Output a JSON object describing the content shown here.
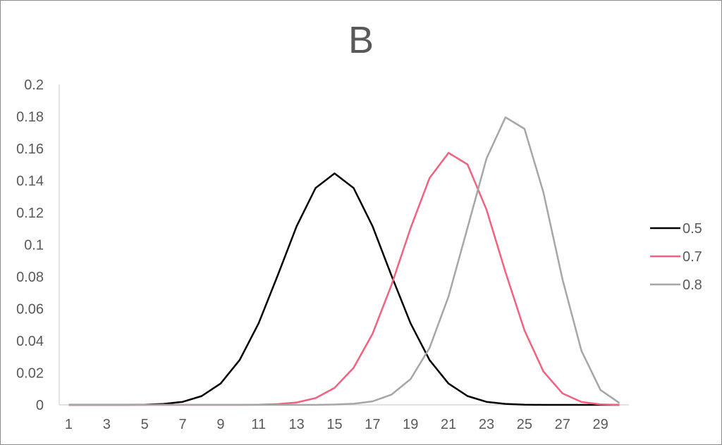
{
  "chart_data": {
    "type": "line",
    "title": "B",
    "xlabel": "",
    "ylabel": "",
    "x": [
      1,
      2,
      3,
      4,
      5,
      6,
      7,
      8,
      9,
      10,
      11,
      12,
      13,
      14,
      15,
      16,
      17,
      18,
      19,
      20,
      21,
      22,
      23,
      24,
      25,
      26,
      27,
      28,
      29,
      30
    ],
    "x_tick_labels": [
      "1",
      "3",
      "5",
      "7",
      "9",
      "11",
      "13",
      "15",
      "17",
      "19",
      "21",
      "23",
      "25",
      "27",
      "29"
    ],
    "y_tick_labels": [
      "0",
      "0.02",
      "0.04",
      "0.06",
      "0.08",
      "0.1",
      "0.12",
      "0.14",
      "0.16",
      "0.18",
      "0.2"
    ],
    "ylim": [
      0,
      0.2
    ],
    "grid": false,
    "legend_position": "right",
    "series": [
      {
        "name": "0.5",
        "color": "#000000",
        "values": [
          0.0,
          0.0,
          0.0,
          0.0,
          0.0001,
          0.0006,
          0.0019,
          0.0055,
          0.0133,
          0.028,
          0.0509,
          0.0806,
          0.1115,
          0.1354,
          0.1445,
          0.1354,
          0.1115,
          0.0806,
          0.0509,
          0.028,
          0.0133,
          0.0055,
          0.0019,
          0.0006,
          0.0001,
          0.0,
          0.0,
          0.0,
          0.0,
          0.0
        ]
      },
      {
        "name": "0.7",
        "color": "#f2627f",
        "values": [
          0.0,
          0.0,
          0.0,
          0.0,
          0.0,
          0.0,
          0.0,
          0.0,
          0.0,
          0.0,
          0.0001,
          0.0005,
          0.0015,
          0.0042,
          0.0106,
          0.0231,
          0.0444,
          0.0749,
          0.1103,
          0.1416,
          0.1573,
          0.1501,
          0.1219,
          0.0829,
          0.0464,
          0.0208,
          0.0072,
          0.0018,
          0.0003,
          0.0
        ]
      },
      {
        "name": "0.8",
        "color": "#a6a6a6",
        "values": [
          0.0,
          0.0,
          0.0,
          0.0,
          0.0,
          0.0,
          0.0,
          0.0,
          0.0,
          0.0,
          0.0,
          0.0,
          0.0,
          0.0,
          0.0002,
          0.0007,
          0.0022,
          0.0064,
          0.0161,
          0.0355,
          0.0676,
          0.1106,
          0.1538,
          0.1795,
          0.1723,
          0.1325,
          0.0785,
          0.0337,
          0.0093,
          0.0012
        ]
      }
    ]
  }
}
